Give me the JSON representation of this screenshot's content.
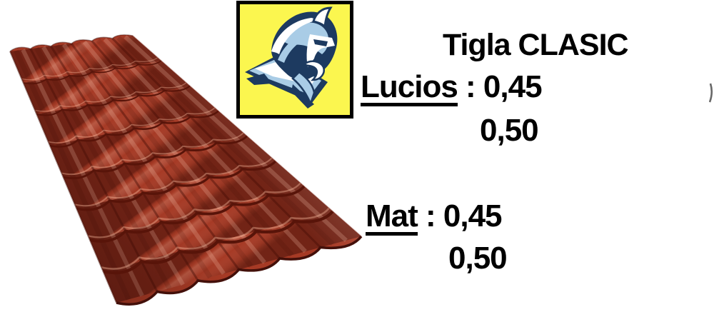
{
  "title": "Tigla CLASIC",
  "specs": {
    "separator": " : ",
    "gloss": {
      "label": "Lucios",
      "value_line1": "0,45",
      "value_line2": "0,50"
    },
    "matte": {
      "label": "Mat",
      "value_line1": "0,45",
      "value_line2": "0,50"
    }
  },
  "logo": {
    "icon": "viking-head"
  },
  "theme": {
    "navy": "#1d3a60",
    "blue": "#a9cce6",
    "white": "#ffffff",
    "logo-yellow": "#fbf64f",
    "logo-border": "#000000",
    "tile-base": "#a63a25",
    "tile-step": "#581409",
    "tile-edge": "#43100a",
    "text-color": "#000000",
    "page-bg": "#ffffff"
  }
}
